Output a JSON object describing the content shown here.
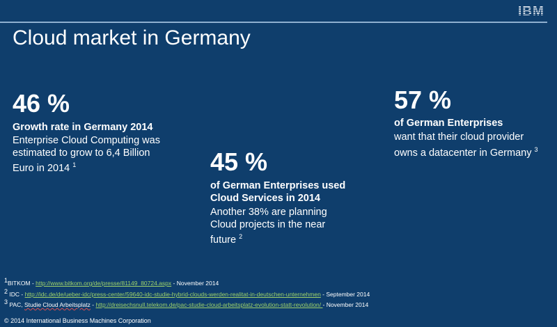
{
  "logo": "IBM",
  "title": "Cloud market in Germany",
  "stats": [
    {
      "value": "46 %",
      "heading": [
        "Growth rate in Germany 2014"
      ],
      "body": [
        "Enterprise Cloud Computing was",
        "estimated to grow to 6,4 Billion",
        "Euro in 2014"
      ],
      "ref": "1"
    },
    {
      "value": "45 %",
      "heading": [
        "of German Enterprises used",
        "Cloud Services in 2014"
      ],
      "body": [
        "Another 38% are planning",
        "Cloud projects in the near",
        "future"
      ],
      "ref": "2"
    },
    {
      "value": "57 %",
      "heading": [
        "of German Enterprises"
      ],
      "body": [
        "want that their cloud provider",
        "owns a datacenter in Germany"
      ],
      "ref": "3"
    }
  ],
  "footnotes": [
    {
      "num": "1",
      "source": "BITKOM - ",
      "link": "http://www.bitkom.org/de/presse/81149_80724.aspx",
      "date": " - November 2014"
    },
    {
      "num": "2",
      "source": " IDC -  ",
      "link": "http://idc.de/de/ueber-idc/press-center/59640-idc-studie-hybrid-clouds-werden-realitat-in-deutschen-unternehmen",
      "date": "  -  September 2014"
    },
    {
      "num": "3",
      "source": " PAC, ",
      "source2": "Studie Cloud Arbeitsplatz",
      "link": "http://dreisechsnull.telekom.de/pac-studie-cloud-arbeitsplatz-evolution-statt-revolution/ ",
      "date": " -  November 2014"
    }
  ],
  "copyright": "© 2014 International Business Machines Corporation",
  "colors": {
    "background": "#0f3e6c",
    "link": "#9ed26a"
  }
}
